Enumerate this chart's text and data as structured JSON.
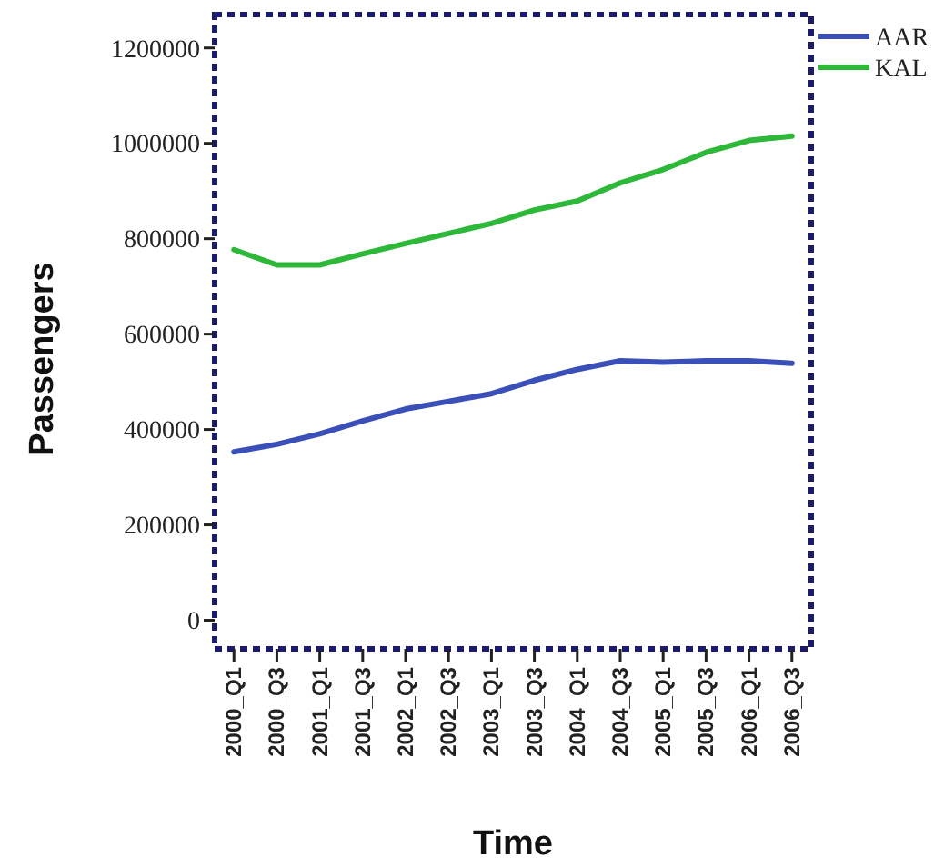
{
  "chart_data": {
    "type": "line",
    "xlabel": "Time",
    "ylabel": "Passengers",
    "categories": [
      "2000_Q1",
      "2000_Q3",
      "2001_Q1",
      "2001_Q3",
      "2002_Q1",
      "2002_Q3",
      "2003_Q1",
      "2003_Q3",
      "2004_Q1",
      "2004_Q3",
      "2005_Q1",
      "2005_Q3",
      "2006_Q1",
      "2006_Q3"
    ],
    "series": [
      {
        "name": "AAR",
        "color": "#3a50b8",
        "values": [
          353000,
          369000,
          391000,
          418000,
          443000,
          459000,
          475000,
          503000,
          526000,
          544000,
          541000,
          544000,
          544000,
          539000
        ]
      },
      {
        "name": "KAL",
        "color": "#2db83a",
        "values": [
          777000,
          745000,
          745000,
          768000,
          790000,
          811000,
          832000,
          860000,
          879000,
          917000,
          945000,
          981000,
          1006000,
          1015000
        ]
      }
    ],
    "ylim": [
      -60000,
      1270000
    ],
    "yticks": [
      0,
      200000,
      400000,
      600000,
      800000,
      1000000,
      1200000
    ],
    "grid": false,
    "legend": "top right",
    "line_style": "solid",
    "marker": "none"
  }
}
